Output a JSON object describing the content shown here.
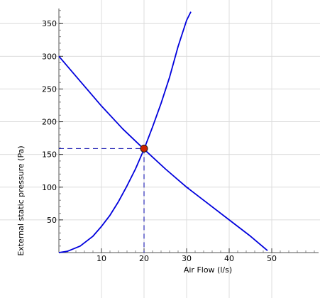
{
  "chart_data": {
    "type": "line",
    "title": "",
    "xlabel": "Air Flow (l/s)",
    "ylabel": "External static pressure (Pa)",
    "xlim": [
      0,
      61
    ],
    "ylim": [
      0,
      373
    ],
    "x_ticks": [
      10,
      20,
      30,
      40,
      50
    ],
    "y_ticks": [
      50,
      100,
      150,
      200,
      250,
      300,
      350
    ],
    "x_minor_step": 2,
    "y_minor_step": 10,
    "grid": true,
    "series": [
      {
        "color": "#0000dd",
        "x": [
          0,
          5,
          10,
          15,
          20,
          25,
          30,
          30.5
        ],
        "y": [
          300,
          262,
          224,
          189,
          158,
          128,
          100,
          98
        ]
      },
      {
        "color": "#0000dd",
        "x": [
          30,
          35,
          40,
          45,
          49
        ],
        "y": [
          100,
          75,
          50,
          25,
          3
        ]
      },
      {
        "color": "#0000dd",
        "x": [
          0,
          2,
          5,
          8,
          10,
          12,
          14,
          16,
          18,
          20,
          22,
          24,
          26,
          28,
          30,
          31
        ],
        "y": [
          0,
          2,
          10,
          25,
          40,
          57,
          78,
          102,
          128,
          158,
          192,
          228,
          268,
          315,
          355,
          368
        ]
      }
    ],
    "operating_point": {
      "x": 20,
      "y": 159,
      "color": "#cc2200"
    }
  }
}
